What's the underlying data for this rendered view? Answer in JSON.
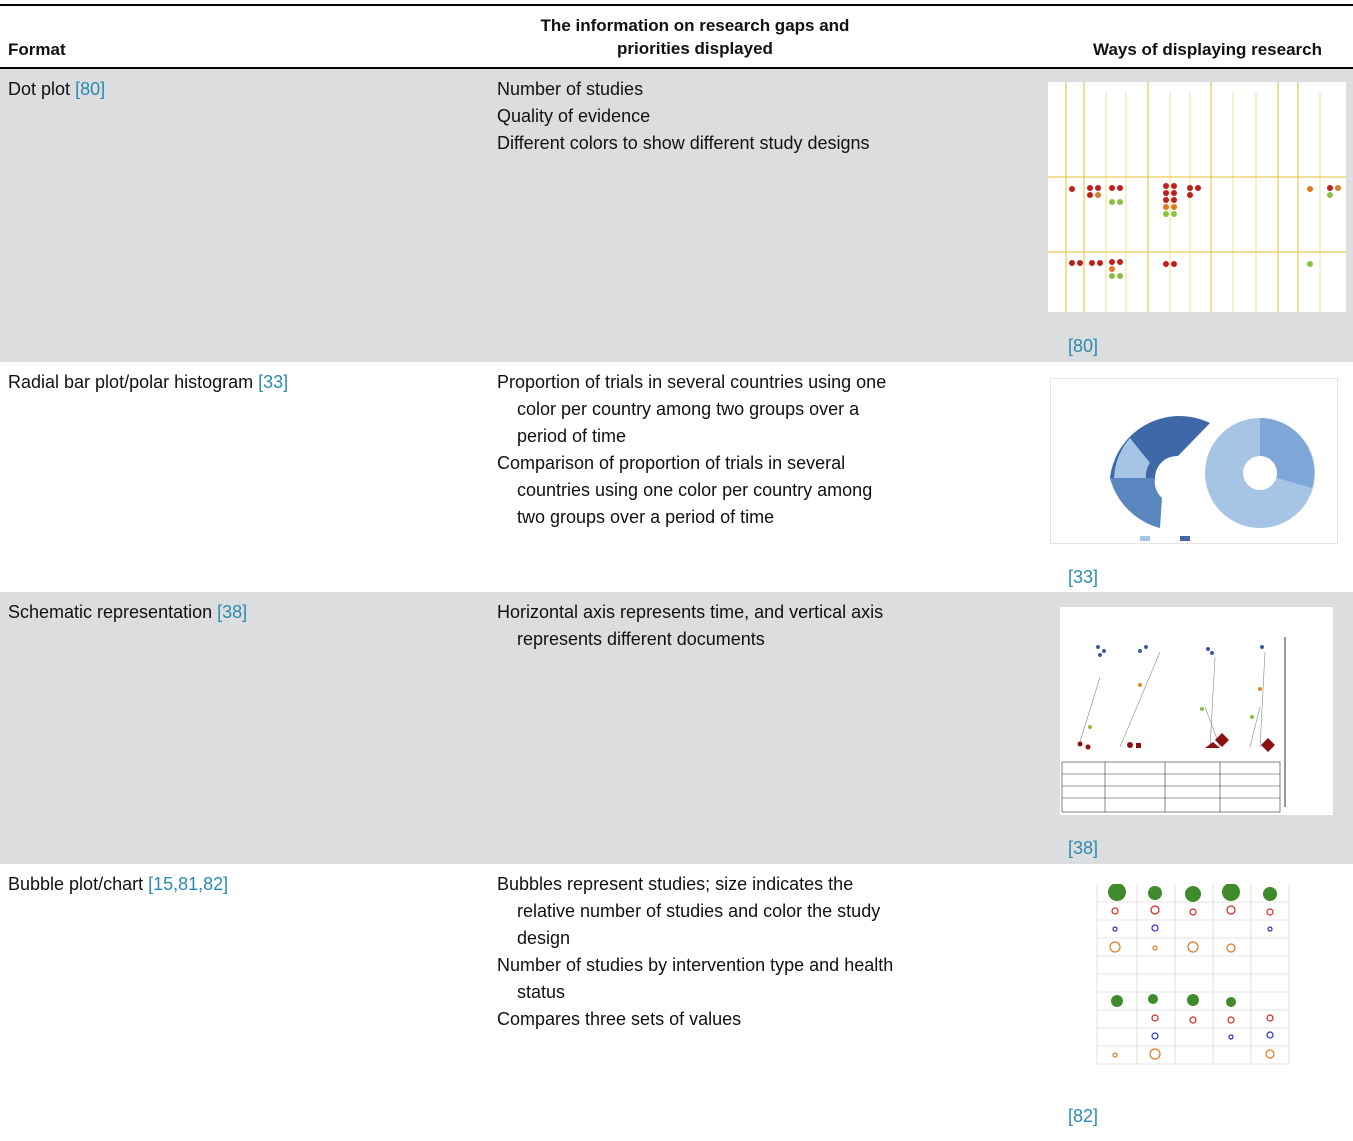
{
  "table": {
    "headers": [
      "Format",
      "The information on research gaps and priorities displayed",
      "Ways of displaying research"
    ],
    "rows": [
      {
        "format": "Dot plot",
        "format_ref": "[80]",
        "items": [
          "Number of studies",
          "Quality of evidence",
          "Different colors to show different study designs"
        ],
        "image_ref": "[80]"
      },
      {
        "format": "Radial bar plot/polar histogram",
        "format_ref": "[33]",
        "items": [
          "Proportion of trials in several countries using one color per country among two groups over a period of time",
          "Comparison of proportion of trials in several countries using one color per country among two groups over a period of time"
        ],
        "image_ref": "[33]"
      },
      {
        "format": "Schematic representation",
        "format_ref": "[38]",
        "items": [
          "Horizontal axis represents time, and vertical axis represents different documents"
        ],
        "image_ref": "[38]"
      },
      {
        "format": "Bubble plot/chart",
        "format_ref": "[15,81,82]",
        "items": [
          "Bubbles represent studies; size indicates the relative number of studies and color the study design",
          "Number of studies by intervention type and health status",
          "Compares three sets of values"
        ],
        "image_ref": "[82]"
      }
    ]
  }
}
